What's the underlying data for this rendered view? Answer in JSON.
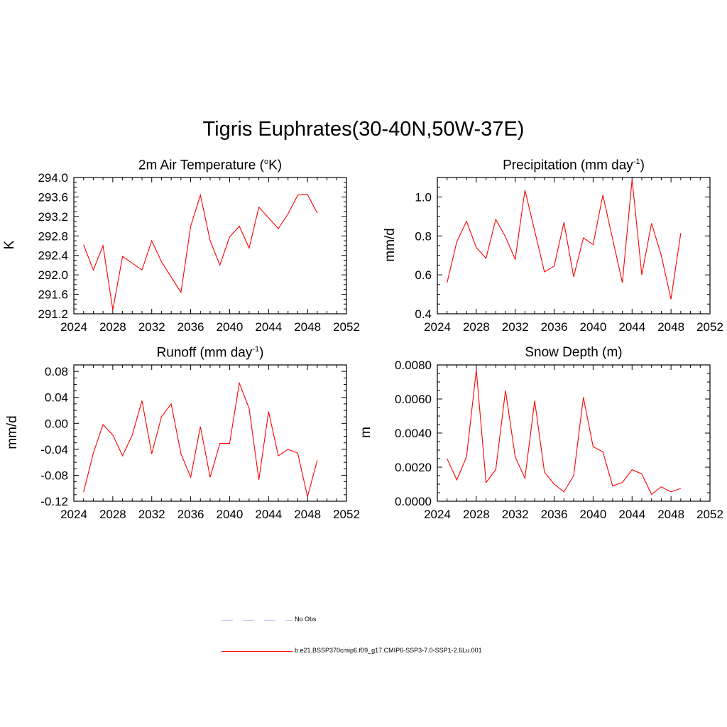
{
  "title": "Tigris Euphrates(30-40N,50W-37E)",
  "line_color": "#ff0000",
  "legend": {
    "items": [
      {
        "label": "No Obs",
        "color": "#aaaaee",
        "style": "dashed"
      },
      {
        "label": "b.e21.BSSP370cmip6.f09_g17.CMIP6-SSP3-7.0-SSP1-2.6Lu.001",
        "color": "#ff0000",
        "style": "solid"
      }
    ]
  },
  "chart_data": [
    {
      "type": "line",
      "title_pre": "2m Air Temperature (",
      "title_sup": "o",
      "title_post": "K)",
      "ylabel": "K",
      "xlabel": "",
      "xlim": [
        2024,
        2052
      ],
      "ylim": [
        291.2,
        294.0
      ],
      "xticks": [
        "2024",
        "2028",
        "2032",
        "2036",
        "2040",
        "2044",
        "2048",
        "2052"
      ],
      "yticks": [
        "291.2",
        "291.6",
        "292.0",
        "292.4",
        "292.8",
        "293.2",
        "293.6",
        "294.0"
      ],
      "series": [
        {
          "x": [
            2025,
            2026,
            2027,
            2028,
            2029,
            2031,
            2032,
            2033,
            2035,
            2036,
            2037,
            2038,
            2039,
            2040,
            2041,
            2042,
            2043,
            2045,
            2046,
            2047,
            2048,
            2049
          ],
          "values": [
            292.62,
            292.1,
            292.6,
            291.28,
            292.38,
            292.1,
            292.7,
            292.27,
            291.64,
            293.0,
            293.64,
            292.7,
            292.2,
            292.78,
            293.0,
            292.55,
            293.39,
            292.95,
            293.25,
            293.64,
            293.65,
            293.27
          ]
        }
      ]
    },
    {
      "type": "line",
      "title_pre": "Precipitation (mm day",
      "title_sup": "-1",
      "title_post": ")",
      "ylabel": "mm/d",
      "xlabel": "",
      "xlim": [
        2024,
        2052
      ],
      "ylim": [
        0.4,
        1.1
      ],
      "xticks": [
        "2024",
        "2028",
        "2032",
        "2036",
        "2040",
        "2044",
        "2048",
        "2052"
      ],
      "yticks": [
        "0.4",
        "0.6",
        "0.8",
        "1.0"
      ],
      "series": [
        {
          "x": [
            2025,
            2026,
            2027,
            2028,
            2029,
            2030,
            2031,
            2032,
            2033,
            2035,
            2036,
            2037,
            2038,
            2039,
            2040,
            2041,
            2043,
            2044,
            2045,
            2046,
            2047,
            2048,
            2049
          ],
          "values": [
            0.56,
            0.77,
            0.875,
            0.74,
            0.685,
            0.885,
            0.795,
            0.68,
            1.035,
            0.615,
            0.645,
            0.87,
            0.59,
            0.79,
            0.755,
            1.01,
            0.56,
            1.09,
            0.6,
            0.865,
            0.7,
            0.475,
            0.815
          ]
        }
      ]
    },
    {
      "type": "line",
      "title_pre": "Runoff (mm day",
      "title_sup": "-1",
      "title_post": ")",
      "ylabel": "mm/d",
      "xlabel": "",
      "xlim": [
        2024,
        2052
      ],
      "ylim": [
        -0.12,
        0.09
      ],
      "xticks": [
        "2024",
        "2028",
        "2032",
        "2036",
        "2040",
        "2044",
        "2048",
        "2052"
      ],
      "yticks": [
        "-0.12",
        "-0.08",
        "-0.04",
        "0.00",
        "0.04",
        "0.08"
      ],
      "series": [
        {
          "x": [
            2025,
            2026,
            2027,
            2028,
            2029,
            2030,
            2031,
            2032,
            2033,
            2034,
            2035,
            2036,
            2037,
            2038,
            2039,
            2040,
            2041,
            2042,
            2043,
            2044,
            2045,
            2046,
            2047,
            2048,
            2049
          ],
          "values": [
            -0.106,
            -0.046,
            -0.002,
            -0.018,
            -0.05,
            -0.018,
            0.035,
            -0.047,
            0.01,
            0.03,
            -0.047,
            -0.083,
            -0.005,
            -0.083,
            -0.031,
            -0.031,
            0.062,
            0.023,
            -0.087,
            0.018,
            -0.05,
            -0.04,
            -0.046,
            -0.113,
            -0.057
          ]
        }
      ]
    },
    {
      "type": "line",
      "title_pre": "Snow Depth (m)",
      "title_sup": "",
      "title_post": "",
      "ylabel": "m",
      "xlabel": "",
      "xlim": [
        2024,
        2052
      ],
      "ylim": [
        0.0,
        0.008
      ],
      "xticks": [
        "2024",
        "2028",
        "2032",
        "2036",
        "2040",
        "2044",
        "2048",
        "2052"
      ],
      "yticks": [
        "0.0000",
        "0.0020",
        "0.0040",
        "0.0060",
        "0.0080"
      ],
      "series": [
        {
          "x": [
            2025,
            2026,
            2027,
            2028,
            2029,
            2030,
            2031,
            2032,
            2033,
            2034,
            2035,
            2036,
            2037,
            2038,
            2039,
            2040,
            2041,
            2042,
            2043,
            2044,
            2045,
            2046,
            2047,
            2048,
            2049
          ],
          "values": [
            0.0025,
            0.00125,
            0.0026,
            0.0077,
            0.0011,
            0.00185,
            0.0065,
            0.0026,
            0.00135,
            0.0059,
            0.0017,
            0.001,
            0.00055,
            0.0015,
            0.0061,
            0.0032,
            0.0029,
            0.0009,
            0.0011,
            0.00185,
            0.0016,
            0.0004,
            0.00085,
            0.00055,
            0.00075
          ]
        }
      ]
    }
  ]
}
